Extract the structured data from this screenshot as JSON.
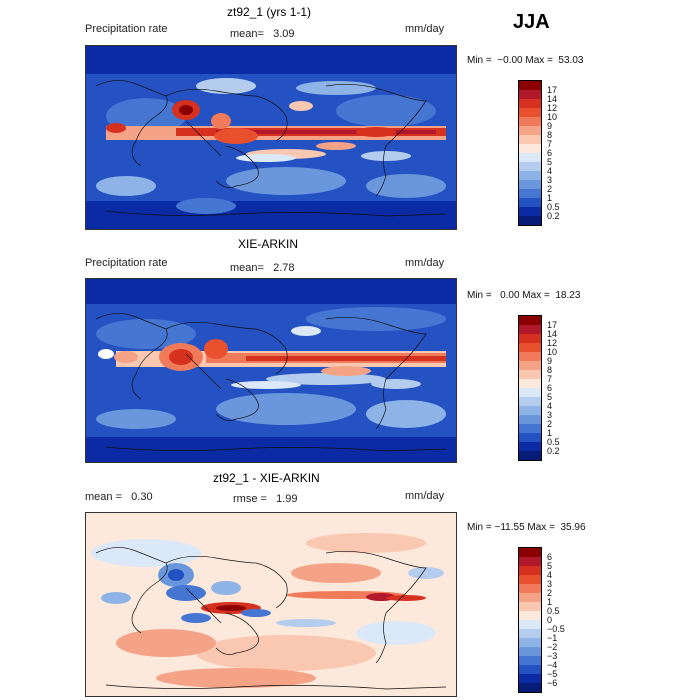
{
  "season": "JJA",
  "panels": [
    {
      "title": "zt92_1 (yrs 1-1)",
      "left_label": "Precipitation rate",
      "stat_text": "mean=   3.09",
      "units": "mm/day",
      "minmax": "Min =  −0.00 Max =  53.03",
      "colorbar": {
        "labels": [
          "17",
          "14",
          "12",
          "10",
          "9",
          "8",
          "7",
          "6",
          "5",
          "4",
          "3",
          "2",
          "1",
          "0.5",
          "0.2"
        ],
        "colors": [
          "#8b0000",
          "#b2182b",
          "#d6301f",
          "#e8502e",
          "#f07a5a",
          "#f5a386",
          "#fac8b0",
          "#fde8dc",
          "#dbe8f7",
          "#b4cdef",
          "#8eb3e6",
          "#6a96dc",
          "#4576d2",
          "#2452c3",
          "#0b2ba5",
          "#071b78"
        ]
      }
    },
    {
      "title": "XIE-ARKIN",
      "left_label": "Precipitation rate",
      "stat_text": "mean=   2.78",
      "units": "mm/day",
      "minmax": "Min =   0.00 Max =  18.23",
      "colorbar": {
        "labels": [
          "17",
          "14",
          "12",
          "10",
          "9",
          "8",
          "7",
          "6",
          "5",
          "4",
          "3",
          "2",
          "1",
          "0.5",
          "0.2"
        ],
        "colors": [
          "#8b0000",
          "#b2182b",
          "#d6301f",
          "#e8502e",
          "#f07a5a",
          "#f5a386",
          "#fac8b0",
          "#fde8dc",
          "#dbe8f7",
          "#b4cdef",
          "#8eb3e6",
          "#6a96dc",
          "#4576d2",
          "#2452c3",
          "#0b2ba5",
          "#071b78"
        ]
      }
    },
    {
      "title": "zt92_1 - XIE-ARKIN",
      "left_label": "mean =   0.30",
      "stat_text": "rmse =   1.99",
      "units": "mm/day",
      "minmax": "Min = −11.55 Max =  35.96",
      "colorbar": {
        "labels": [
          "6",
          "5",
          "4",
          "3",
          "2",
          "1",
          "0.5",
          "0",
          "−0.5",
          "−1",
          "−2",
          "−3",
          "−4",
          "−5",
          "−6"
        ],
        "colors": [
          "#8b0000",
          "#b2182b",
          "#d6301f",
          "#e8502e",
          "#f07a5a",
          "#f5a386",
          "#fac8b0",
          "#fde8dc",
          "#dbe8f7",
          "#b4cdef",
          "#8eb3e6",
          "#6a96dc",
          "#4576d2",
          "#2452c3",
          "#0b2ba5",
          "#071b78"
        ]
      }
    }
  ]
}
